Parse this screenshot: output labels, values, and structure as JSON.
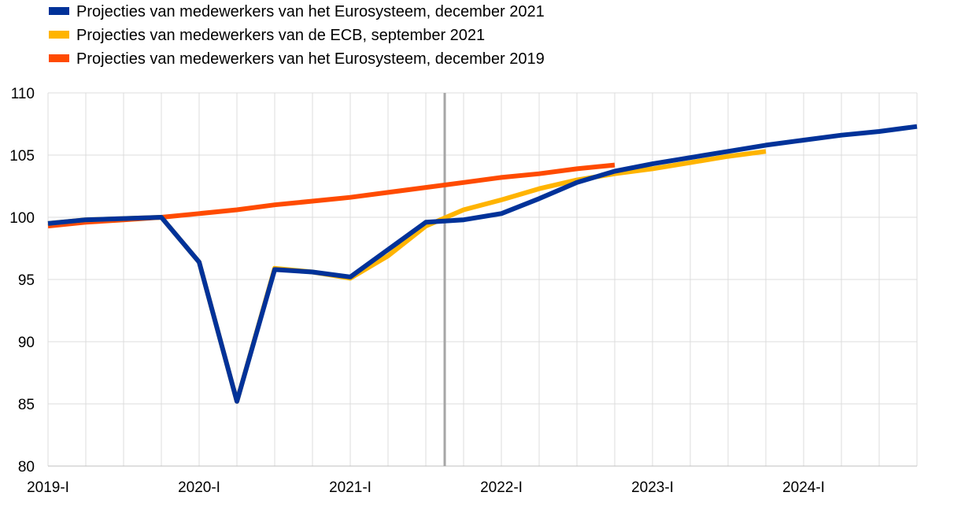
{
  "chart_data": {
    "type": "line",
    "title": "",
    "xlabel": "",
    "ylabel": "",
    "ylim": [
      80,
      110
    ],
    "yticks": [
      80,
      85,
      90,
      95,
      100,
      105,
      110
    ],
    "x": [
      "2019Q1",
      "2019Q2",
      "2019Q3",
      "2019Q4",
      "2020Q1",
      "2020Q2",
      "2020Q3",
      "2020Q4",
      "2021Q1",
      "2021Q2",
      "2021Q3",
      "2021Q4",
      "2022Q1",
      "2022Q2",
      "2022Q3",
      "2022Q4",
      "2023Q1",
      "2023Q2",
      "2023Q3",
      "2023Q4",
      "2024Q1",
      "2024Q2",
      "2024Q3",
      "2024Q4"
    ],
    "xtick_labels": [
      {
        "index": 0,
        "label": "2019-I"
      },
      {
        "index": 4,
        "label": "2020-I"
      },
      {
        "index": 8,
        "label": "2021-I"
      },
      {
        "index": 12,
        "label": "2022-I"
      },
      {
        "index": 16,
        "label": "2023-I"
      },
      {
        "index": 20,
        "label": "2024-I"
      }
    ],
    "grid": true,
    "legend_position": "top-left",
    "vertical_marker_index": 10.5,
    "series": [
      {
        "name": "Projecties van medewerkers van het Eurosysteem, december 2019",
        "color": "#ff4b00",
        "values": [
          99.3,
          99.6,
          99.8,
          100.0,
          100.3,
          100.6,
          101.0,
          101.3,
          101.6,
          102.0,
          102.4,
          102.8,
          103.2,
          103.5,
          103.9,
          104.2,
          null,
          null,
          null,
          null,
          null,
          null,
          null,
          null
        ]
      },
      {
        "name": "Projecties van medewerkers van de ECB, september 2021",
        "color": "#ffb400",
        "values": [
          99.5,
          99.8,
          99.9,
          100.0,
          96.4,
          85.2,
          95.9,
          95.6,
          95.1,
          96.9,
          99.3,
          100.6,
          101.4,
          102.3,
          103.0,
          103.5,
          103.9,
          104.4,
          104.9,
          105.3,
          null,
          null,
          null,
          null
        ]
      },
      {
        "name": "Projecties van medewerkers van het Eurosysteem, december 2021",
        "color": "#003299",
        "values": [
          99.5,
          99.8,
          99.9,
          100.0,
          96.4,
          85.2,
          95.8,
          95.6,
          95.2,
          97.4,
          99.6,
          99.8,
          100.3,
          101.5,
          102.8,
          103.7,
          104.3,
          104.8,
          105.3,
          105.8,
          106.2,
          106.6,
          106.9,
          107.3
        ]
      }
    ],
    "legend_order": [
      2,
      1,
      0
    ]
  }
}
